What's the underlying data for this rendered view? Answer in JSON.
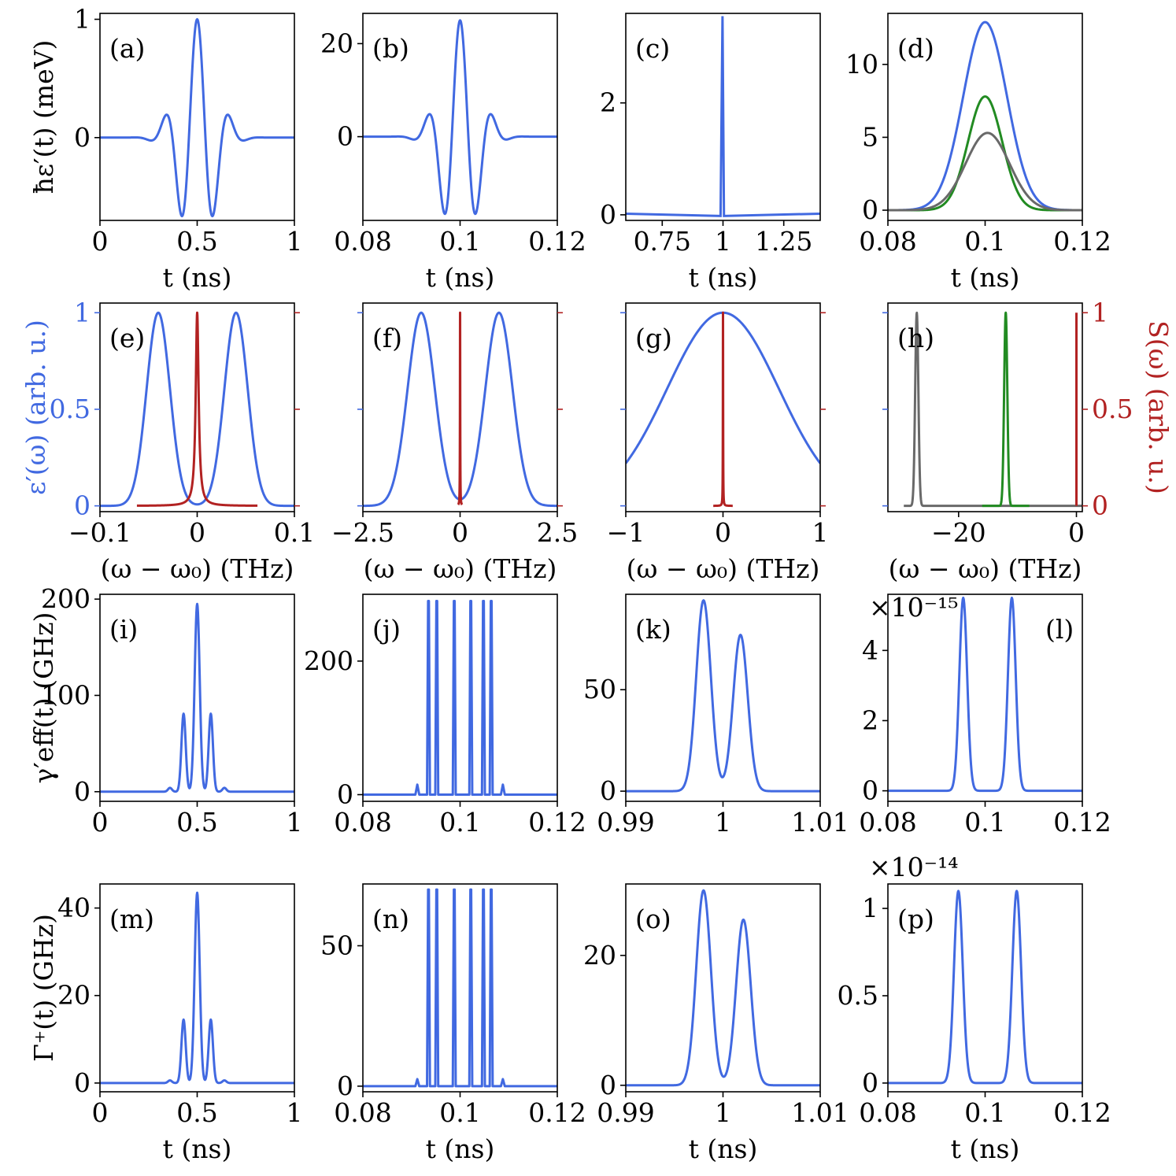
{
  "colors": {
    "blue": "#4169e1",
    "red": "#b22222",
    "green": "#228b22",
    "gray": "#696969",
    "axis": "#000000"
  },
  "chart_data": [
    {
      "panel": "a",
      "type": "line",
      "title": "(a)",
      "ylabel": "ħε′(t) (meV)",
      "xlabel": "t (ns)",
      "xlim": [
        0,
        1
      ],
      "ylim": [
        -0.7,
        1.05
      ],
      "xticks": [
        {
          "v": 0,
          "label": "0"
        },
        {
          "v": 0.5,
          "label": "0.5"
        },
        {
          "v": 1,
          "label": "1"
        }
      ],
      "yticks": [
        {
          "v": 0,
          "label": "0"
        },
        {
          "v": 1,
          "label": "1"
        }
      ],
      "series": [
        {
          "name": "field",
          "color": "blue",
          "fn": "wavelet",
          "center": 0.5,
          "sigma": 0.09,
          "period": 0.17,
          "amp": 1,
          "pts": 400
        }
      ]
    },
    {
      "panel": "b",
      "type": "line",
      "title": "(b)",
      "ylabel": "",
      "xlabel": "t (ns)",
      "xlim": [
        0.08,
        0.12
      ],
      "ylim": [
        -18,
        26.5
      ],
      "xticks": [
        {
          "v": 0.08,
          "label": "0.08"
        },
        {
          "v": 0.1,
          "label": "0.1"
        },
        {
          "v": 0.12,
          "label": "0.12"
        }
      ],
      "yticks": [
        {
          "v": 0,
          "label": "0"
        },
        {
          "v": 20,
          "label": "20"
        }
      ],
      "series": [
        {
          "name": "field",
          "color": "blue",
          "fn": "wavelet",
          "center": 0.1,
          "sigma": 0.0036,
          "period": 0.0068,
          "amp": 25,
          "pts": 400
        }
      ]
    },
    {
      "panel": "c",
      "type": "line",
      "title": "(c)",
      "ylabel": "",
      "xlabel": "t (ns)",
      "xlim": [
        0.6,
        1.4
      ],
      "ylim": [
        -0.1,
        3.6
      ],
      "xticks": [
        {
          "v": 0.75,
          "label": "0.75"
        },
        {
          "v": 1,
          "label": "1"
        },
        {
          "v": 1.25,
          "label": "1.25"
        }
      ],
      "yticks": [
        {
          "v": 0,
          "label": "0"
        },
        {
          "v": 2,
          "label": "2"
        }
      ],
      "series": [
        {
          "name": "field",
          "color": "blue",
          "fn": "spike",
          "center": 1,
          "amp": 3.55,
          "base": 0.02,
          "pts": 600
        }
      ]
    },
    {
      "panel": "d",
      "type": "line",
      "title": "(d)",
      "ylabel": "",
      "xlabel": "t (ns)",
      "xlim": [
        0.08,
        0.12
      ],
      "ylim": [
        -0.7,
        13.5
      ],
      "xticks": [
        {
          "v": 0.08,
          "label": "0.08"
        },
        {
          "v": 0.1,
          "label": "0.1"
        },
        {
          "v": 0.12,
          "label": "0.12"
        }
      ],
      "yticks": [
        {
          "v": 0,
          "label": "0"
        },
        {
          "v": 5,
          "label": "5"
        },
        {
          "v": 10,
          "label": "10"
        }
      ],
      "series": [
        {
          "name": "blue",
          "color": "blue",
          "fn": "gauss",
          "center": 0.1,
          "sigma": 0.0045,
          "amp": 12.9,
          "pts": 300
        },
        {
          "name": "green",
          "color": "green",
          "fn": "gauss",
          "center": 0.1,
          "sigma": 0.0035,
          "amp": 7.8,
          "pts": 300
        },
        {
          "name": "gray",
          "color": "gray",
          "fn": "gauss",
          "center": 0.1005,
          "sigma": 0.0045,
          "amp": 5.3,
          "pts": 300
        }
      ]
    },
    {
      "panel": "e",
      "type": "line",
      "title": "(e)",
      "ylabel": "ε′(ω) (arb. u.)",
      "xlabel": "(ω − ω₀) (THz)",
      "xlim": [
        -0.1,
        0.1
      ],
      "ylim": [
        -0.03,
        1.05
      ],
      "xticks": [
        {
          "v": -0.1,
          "label": "−0.1"
        },
        {
          "v": 0,
          "label": "0"
        },
        {
          "v": 0.1,
          "label": "0.1"
        }
      ],
      "yticks": [
        {
          "v": 0,
          "label": "0"
        },
        {
          "v": 0.5,
          "label": "0.5"
        },
        {
          "v": 1,
          "label": "1"
        }
      ],
      "series": [
        {
          "name": "ε′(ω)",
          "color": "blue",
          "fn": "doublegauss",
          "centers": [
            -0.04,
            0.04
          ],
          "sigma": 0.012,
          "amp": 1,
          "pts": 400
        },
        {
          "name": "S(ω)",
          "color": "red",
          "fn": "lorentz",
          "center": 0,
          "gamma": 0.0018,
          "amp": 1,
          "x0": -0.062,
          "x1": 0.062,
          "pts": 600
        }
      ]
    },
    {
      "panel": "f",
      "type": "line",
      "title": "(f)",
      "ylabel": "",
      "xlabel": "(ω − ω₀) (THz)",
      "xlim": [
        -2.5,
        2.5
      ],
      "ylim": [
        -0.03,
        1.05
      ],
      "xticks": [
        {
          "v": -2.5,
          "label": "−2.5"
        },
        {
          "v": 0,
          "label": "0"
        },
        {
          "v": 2.5,
          "label": "2.5"
        }
      ],
      "yticks": [],
      "series": [
        {
          "name": "ε′(ω)",
          "color": "blue",
          "fn": "doublegauss",
          "centers": [
            -1,
            1
          ],
          "sigma": 0.35,
          "amp": 1,
          "pts": 400
        },
        {
          "name": "S(ω)",
          "color": "red",
          "fn": "lorentz",
          "center": 0,
          "gamma": 0.004,
          "amp": 1,
          "x0": -0.05,
          "x1": 0.05,
          "pts": 300
        }
      ]
    },
    {
      "panel": "g",
      "type": "line",
      "title": "(g)",
      "ylabel": "",
      "xlabel": "(ω − ω₀) (THz)",
      "xlim": [
        -1,
        1
      ],
      "ylim": [
        -0.03,
        1.05
      ],
      "xticks": [
        {
          "v": -1,
          "label": "−1"
        },
        {
          "v": 0,
          "label": "0"
        },
        {
          "v": 1,
          "label": "1"
        }
      ],
      "yticks": [],
      "series": [
        {
          "name": "ε′(ω)",
          "color": "blue",
          "fn": "gauss",
          "center": 0,
          "sigma": 0.575,
          "amp": 1,
          "pts": 300
        },
        {
          "name": "S(ω)",
          "color": "red",
          "fn": "lorentz",
          "center": 0,
          "gamma": 0.0015,
          "amp": 1,
          "x0": -0.1,
          "x1": 0.1,
          "pts": 300
        }
      ]
    },
    {
      "panel": "h",
      "type": "line",
      "title": "(h)",
      "ylabel": "S(ω) (arb. u.)",
      "xlabel": "(ω − ω₀) (THz)",
      "xlim": [
        -32,
        1
      ],
      "ylim": [
        -0.03,
        1.05
      ],
      "xticks": [
        {
          "v": -20,
          "label": "−20"
        },
        {
          "v": 0,
          "label": "0"
        }
      ],
      "yticks": [
        {
          "v": 0,
          "label": "0"
        },
        {
          "v": 0.5,
          "label": "0.5"
        },
        {
          "v": 1,
          "label": "1"
        }
      ],
      "series": [
        {
          "name": "gray",
          "color": "gray",
          "fn": "gauss",
          "center": -27.1,
          "sigma": 0.27,
          "amp": 1,
          "x0": -29.3,
          "x1": 1,
          "pts": 700
        },
        {
          "name": "green",
          "color": "green",
          "fn": "gauss",
          "center": -12,
          "sigma": 0.27,
          "amp": 1,
          "x0": -16,
          "x1": -8,
          "pts": 300
        },
        {
          "name": "red",
          "color": "red",
          "fn": "spikeline",
          "center": 0,
          "amp": 1,
          "pts": 2
        }
      ]
    },
    {
      "panel": "i",
      "type": "line",
      "title": "(i)",
      "ylabel": "γ′eff(t) (GHz)",
      "xlabel": "",
      "xlim": [
        0,
        1
      ],
      "ylim": [
        -10,
        205
      ],
      "xticks": [
        {
          "v": 0,
          "label": "0"
        },
        {
          "v": 0.5,
          "label": "0.5"
        },
        {
          "v": 1,
          "label": "1"
        }
      ],
      "yticks": [
        {
          "v": 0,
          "label": "0"
        },
        {
          "v": 100,
          "label": "100"
        },
        {
          "v": 200,
          "label": "200"
        }
      ],
      "series": [
        {
          "name": "gamma",
          "color": "blue",
          "fn": "peaks",
          "peaks": [
            [
              0.5,
              195,
              0.013
            ],
            [
              0.43,
              81,
              0.011
            ],
            [
              0.57,
              81,
              0.011
            ],
            [
              0.36,
              4,
              0.01
            ],
            [
              0.64,
              4,
              0.01
            ]
          ],
          "pts": 500
        }
      ]
    },
    {
      "panel": "j",
      "type": "line",
      "title": "(j)",
      "ylabel": "",
      "xlabel": "",
      "xlim": [
        0.08,
        0.12
      ],
      "ylim": [
        -10,
        300
      ],
      "xticks": [
        {
          "v": 0.08,
          "label": "0.08"
        },
        {
          "v": 0.1,
          "label": "0.1"
        },
        {
          "v": 0.12,
          "label": "0.12"
        }
      ],
      "yticks": [
        {
          "v": 0,
          "label": "0"
        },
        {
          "v": 200,
          "label": "200"
        }
      ],
      "series": [
        {
          "name": "gamma",
          "color": "blue",
          "fn": "spikes",
          "clip": 290,
          "spikes": [
            0.0935,
            0.0952,
            0.0988,
            0.1022,
            0.1048,
            0.1064
          ],
          "small": [
            [
              0.0912,
              15
            ],
            [
              0.1088,
              15
            ]
          ],
          "pts": 2
        }
      ]
    },
    {
      "panel": "k",
      "type": "line",
      "title": "(k)",
      "ylabel": "",
      "xlabel": "",
      "xlim": [
        0.99,
        1.01
      ],
      "ylim": [
        -5,
        97
      ],
      "xticks": [
        {
          "v": 0.99,
          "label": "0.99"
        },
        {
          "v": 1,
          "label": "1"
        },
        {
          "v": 1.01,
          "label": "1.01"
        }
      ],
      "yticks": [
        {
          "v": 0,
          "label": "0"
        },
        {
          "v": 50,
          "label": "50"
        }
      ],
      "series": [
        {
          "name": "gamma",
          "color": "blue",
          "fn": "peaks",
          "peaks": [
            [
              0.998,
              94,
              0.00075
            ],
            [
              1.0018,
              77,
              0.00075
            ]
          ],
          "pts": 400
        }
      ]
    },
    {
      "panel": "l",
      "type": "line",
      "title": "(l)",
      "ylabel": "",
      "xlabel": "",
      "offset": "×10⁻¹⁵",
      "xlim": [
        0.08,
        0.12
      ],
      "ylim": [
        -0.3,
        5.6
      ],
      "xticks": [
        {
          "v": 0.08,
          "label": "0.08"
        },
        {
          "v": 0.1,
          "label": "0.1"
        },
        {
          "v": 0.12,
          "label": "0.12"
        }
      ],
      "yticks": [
        {
          "v": 0,
          "label": "0"
        },
        {
          "v": 2,
          "label": "2"
        },
        {
          "v": 4,
          "label": "4"
        }
      ],
      "series": [
        {
          "name": "gamma",
          "color": "blue",
          "fn": "peaks",
          "peaks": [
            [
              0.0955,
              5.5,
              0.0008
            ],
            [
              0.1055,
              5.5,
              0.0008
            ]
          ],
          "pts": 400
        }
      ]
    },
    {
      "panel": "m",
      "type": "line",
      "title": "(m)",
      "ylabel": "Γ⁺(t) (GHz)",
      "xlabel": "t (ns)",
      "xlim": [
        0,
        1
      ],
      "ylim": [
        -2,
        45.5
      ],
      "xticks": [
        {
          "v": 0,
          "label": "0"
        },
        {
          "v": 0.5,
          "label": "0.5"
        },
        {
          "v": 1,
          "label": "1"
        }
      ],
      "yticks": [
        {
          "v": 0,
          "label": "0"
        },
        {
          "v": 20,
          "label": "20"
        },
        {
          "v": 40,
          "label": "40"
        }
      ],
      "series": [
        {
          "name": "Gamma",
          "color": "blue",
          "fn": "peaks",
          "peaks": [
            [
              0.5,
              43.5,
              0.013
            ],
            [
              0.43,
              14.5,
              0.011
            ],
            [
              0.57,
              14.5,
              0.011
            ],
            [
              0.36,
              0.6,
              0.01
            ],
            [
              0.64,
              0.6,
              0.01
            ]
          ],
          "pts": 500
        }
      ]
    },
    {
      "panel": "n",
      "type": "line",
      "title": "(n)",
      "ylabel": "",
      "xlabel": "t (ns)",
      "xlim": [
        0.08,
        0.12
      ],
      "ylim": [
        -2,
        72
      ],
      "xticks": [
        {
          "v": 0.08,
          "label": "0.08"
        },
        {
          "v": 0.1,
          "label": "0.1"
        },
        {
          "v": 0.12,
          "label": "0.12"
        }
      ],
      "yticks": [
        {
          "v": 0,
          "label": "0"
        },
        {
          "v": 50,
          "label": "50"
        }
      ],
      "series": [
        {
          "name": "Gamma",
          "color": "blue",
          "fn": "spikes",
          "clip": 70,
          "spikes": [
            0.0935,
            0.0952,
            0.0988,
            0.1022,
            0.1048,
            0.1064
          ],
          "small": [
            [
              0.0912,
              2.5
            ],
            [
              0.1088,
              2.5
            ]
          ],
          "pts": 2
        }
      ]
    },
    {
      "panel": "o",
      "type": "line",
      "title": "(o)",
      "ylabel": "",
      "xlabel": "t (ns)",
      "xlim": [
        0.99,
        1.01
      ],
      "ylim": [
        -1,
        31
      ],
      "xticks": [
        {
          "v": 0.99,
          "label": "0.99"
        },
        {
          "v": 1,
          "label": "1"
        },
        {
          "v": 1.01,
          "label": "1.01"
        }
      ],
      "yticks": [
        {
          "v": 0,
          "label": "0"
        },
        {
          "v": 20,
          "label": "20"
        }
      ],
      "series": [
        {
          "name": "Gamma",
          "color": "blue",
          "fn": "peaks",
          "peaks": [
            [
              0.998,
              30,
              0.00075
            ],
            [
              1.0021,
              25.5,
              0.00075
            ]
          ],
          "pts": 400
        }
      ]
    },
    {
      "panel": "p",
      "type": "line",
      "title": "(p)",
      "ylabel": "",
      "xlabel": "t (ns)",
      "offset": "×10⁻¹⁴",
      "xlim": [
        0.08,
        0.12
      ],
      "ylim": [
        -0.05,
        1.14
      ],
      "xticks": [
        {
          "v": 0.08,
          "label": "0.08"
        },
        {
          "v": 0.1,
          "label": "0.1"
        },
        {
          "v": 0.12,
          "label": "0.12"
        }
      ],
      "yticks": [
        {
          "v": 0,
          "label": "0"
        },
        {
          "v": 0.5,
          "label": "0.5"
        },
        {
          "v": 1,
          "label": "1"
        }
      ],
      "series": [
        {
          "name": "Gamma",
          "color": "blue",
          "fn": "peaks",
          "peaks": [
            [
              0.0945,
              1.1,
              0.0009
            ],
            [
              0.1065,
              1.1,
              0.0009
            ]
          ],
          "pts": 400
        }
      ]
    }
  ]
}
